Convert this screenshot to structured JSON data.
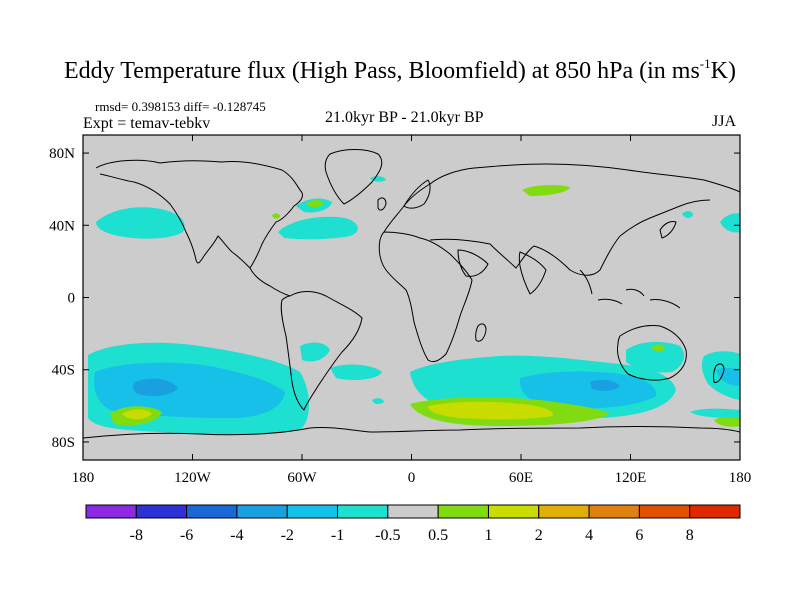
{
  "title": {
    "main": "Eddy Temperature flux (High Pass, Bloomfield) at 850 hPa (in ms",
    "sup": "-1",
    "tail": "K)"
  },
  "stats_line": "rmsd= 0.398153 diff= -0.128745",
  "expt_line": "Expt = temav-tebkv",
  "period_line": "21.0kyr BP - 21.0kyr BP",
  "season": "JJA",
  "map": {
    "projection": "cylindrical equidistant",
    "lon_ticks": [
      "180",
      "120W",
      "60W",
      "0",
      "60E",
      "120E",
      "180"
    ],
    "lat_ticks": [
      "80N",
      "40N",
      "0",
      "40S",
      "80S"
    ],
    "background_color": "#cccccc",
    "coastline_color": "#000000"
  },
  "colorbar": {
    "labels": [
      "-8",
      "-6",
      "-4",
      "-2",
      "-1",
      "-0.5",
      "0.5",
      "1",
      "2",
      "4",
      "6",
      "8"
    ],
    "colors": [
      "#8a2be2",
      "#3030d8",
      "#1a68d8",
      "#1aa0e0",
      "#16c0e8",
      "#1ee0d0",
      "#cccccc",
      "#80dc10",
      "#c8dc00",
      "#e0b000",
      "#e08010",
      "#e05000",
      "#e02800"
    ]
  },
  "anomaly_colors": {
    "cyan": "#1ee0d0",
    "lightblue": "#16c0e8",
    "blue": "#1aa0e0",
    "green": "#80dc10",
    "yellow": "#c8dc00"
  }
}
